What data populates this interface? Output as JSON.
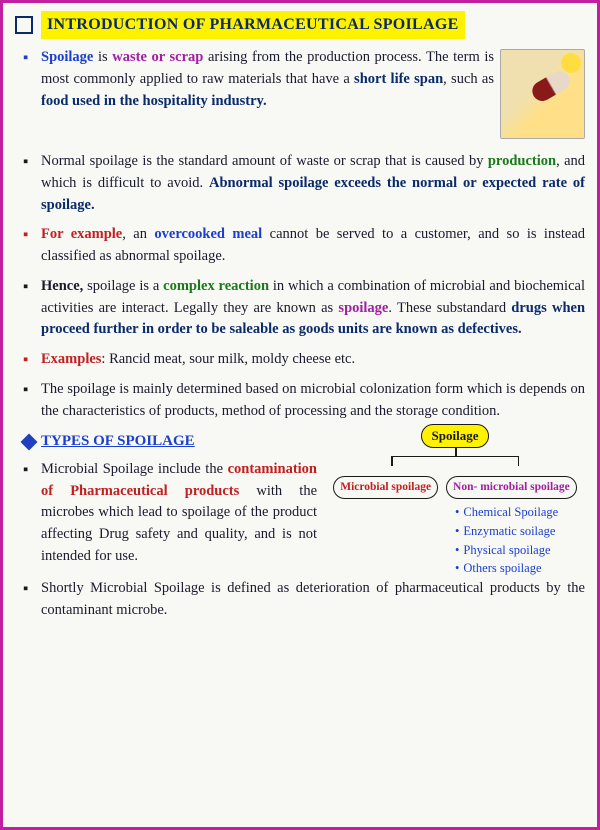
{
  "title": "INTRODUCTION OF PHARMACEUTICAL SPOILAGE",
  "para1": {
    "t1": "Spoilage",
    "t2": " is ",
    "t3": "waste or scrap",
    "t4": " arising from the production process. The term is most commonly applied to raw materials that have a ",
    "t5": "short life span",
    "t6": ", such as ",
    "t7": "food used in the hospitality industry."
  },
  "para2": {
    "t1": "Normal spoilage is the standard amount of waste or scrap that is caused by ",
    "t2": "production",
    "t3": ", and which is difficult to avoid. ",
    "t4": "Abnormal spoilage exceeds the normal or expected rate of spoilage."
  },
  "para3": {
    "t1": "For example",
    "t2": ", an ",
    "t3": "overcooked meal",
    "t4": " cannot be served to a customer, and so is instead classified as abnormal spoilage."
  },
  "para4": {
    "t1": "Hence,",
    "t2": " spoilage is a ",
    "t3": "complex reaction",
    "t4": " in which a combination of microbial and biochemical activities are interact. Legally they are known as ",
    "t5": "spoilage",
    "t6": ". These substandard ",
    "t7": "drugs when proceed further in order to be saleable as goods units are known as defectives."
  },
  "para5": {
    "t1": "Examples",
    "t2": ": Rancid meat, sour milk, moldy cheese etc."
  },
  "para6": "The spoilage is mainly determined based on microbial colonization form which is depends on the characteristics of products, method of processing and the storage condition.",
  "section": "TYPES OF SPOILAGE",
  "para7": {
    "t1": "Microbial Spoilage include the ",
    "t2": "contamination of Pharmaceutical products",
    "t3": " with the microbes which lead to spoilage of the product affecting Drug safety and quality, and is not intended for use."
  },
  "para8": "Shortly Microbial Spoilage is defined as deterioration of pharmaceutical products by the contaminant microbe.",
  "diagram": {
    "root": "Spoilage",
    "leaf1": "Microbial spoilage",
    "leaf2": "Non- microbial spoilage",
    "sub": [
      "Chemical Spoilage",
      "Enzymatic soilage",
      "Physical spoilage",
      "Others spoilage"
    ]
  },
  "colors": {
    "border": "#c020a0",
    "title_bg": "#fff200",
    "title_fg": "#0a2a6a",
    "blue": "#1a3fd0",
    "red": "#c02020",
    "green": "#1a7a1a",
    "purple": "#a020a0"
  }
}
